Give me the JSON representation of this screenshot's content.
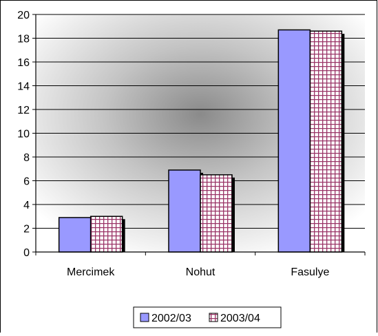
{
  "chart_data": {
    "type": "bar",
    "title": "",
    "xlabel": "",
    "ylabel": "",
    "categories": [
      "Mercimek",
      "Nohut",
      "Fasulye"
    ],
    "series": [
      {
        "name": "2002/03",
        "values": [
          2.9,
          6.9,
          18.7
        ],
        "color": "#9999ff",
        "pattern": "solid"
      },
      {
        "name": "2003/04",
        "values": [
          3.0,
          6.5,
          18.6
        ],
        "color": "#993366",
        "pattern": "checkered"
      }
    ],
    "ylim": [
      0,
      20
    ],
    "yticks": [
      "0",
      "2",
      "4",
      "6",
      "8",
      "10",
      "12",
      "14",
      "16",
      "18",
      "20"
    ],
    "grid": true,
    "legend_position": "bottom",
    "background": "radial gradient grey to white"
  }
}
